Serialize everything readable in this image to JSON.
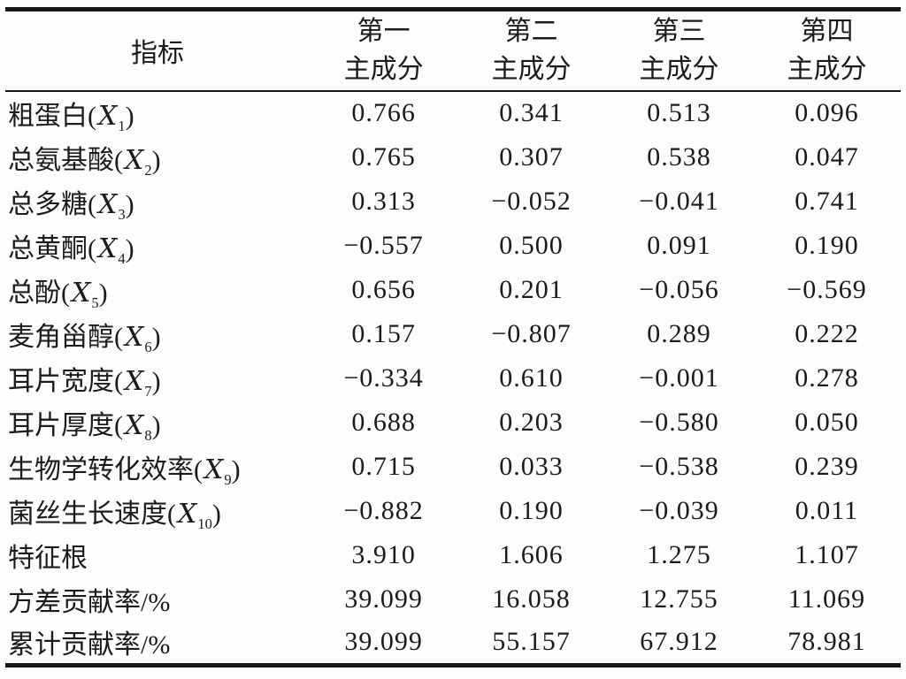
{
  "page": {
    "background": "#fdfdfd",
    "rule_color": "#161616",
    "text_color": "#1b1b1b"
  },
  "table": {
    "header": {
      "indicator_label": "指标",
      "component_columns": [
        {
          "line1": "第一",
          "line2": "主成分"
        },
        {
          "line1": "第二",
          "line2": "主成分"
        },
        {
          "line1": "第三",
          "line2": "主成分"
        },
        {
          "line1": "第四",
          "line2": "主成分"
        }
      ]
    },
    "rows": [
      {
        "label": "粗蛋白",
        "variable": "X",
        "subscript": "1",
        "values": [
          "0.766",
          "0.341",
          "0.513",
          "0.096"
        ]
      },
      {
        "label": "总氨基酸",
        "variable": "X",
        "subscript": "2",
        "values": [
          "0.765",
          "0.307",
          "0.538",
          "0.047"
        ]
      },
      {
        "label": "总多糖",
        "variable": "X",
        "subscript": "3",
        "values": [
          "0.313",
          "−0.052",
          "−0.041",
          "0.741"
        ]
      },
      {
        "label": "总黄酮",
        "variable": "X",
        "subscript": "4",
        "values": [
          "−0.557",
          "0.500",
          "0.091",
          "0.190"
        ]
      },
      {
        "label": "总酚",
        "variable": "X",
        "subscript": "5",
        "values": [
          "0.656",
          "0.201",
          "−0.056",
          "−0.569"
        ]
      },
      {
        "label": "麦角甾醇",
        "variable": "X",
        "subscript": "6",
        "values": [
          "0.157",
          "−0.807",
          "0.289",
          "0.222"
        ]
      },
      {
        "label": "耳片宽度",
        "variable": "X",
        "subscript": "7",
        "values": [
          "−0.334",
          "0.610",
          "−0.001",
          "0.278"
        ]
      },
      {
        "label": "耳片厚度",
        "variable": "X",
        "subscript": "8",
        "values": [
          "0.688",
          "0.203",
          "−0.580",
          "0.050"
        ]
      },
      {
        "label": "生物学转化效率",
        "variable": "X",
        "subscript": "9",
        "values": [
          "0.715",
          "0.033",
          "−0.538",
          "0.239"
        ]
      },
      {
        "label": "菌丝生长速度",
        "variable": "X",
        "subscript": "10",
        "values": [
          "−0.882",
          "0.190",
          "−0.039",
          "0.011"
        ]
      },
      {
        "label": "特征根",
        "values": [
          "3.910",
          "1.606",
          "1.275",
          "1.107"
        ]
      },
      {
        "label": "方差贡献率/%",
        "values": [
          "39.099",
          "16.058",
          "12.755",
          "11.069"
        ]
      },
      {
        "label": "累计贡献率/%",
        "values": [
          "39.099",
          "55.157",
          "67.912",
          "78.981"
        ]
      }
    ]
  }
}
